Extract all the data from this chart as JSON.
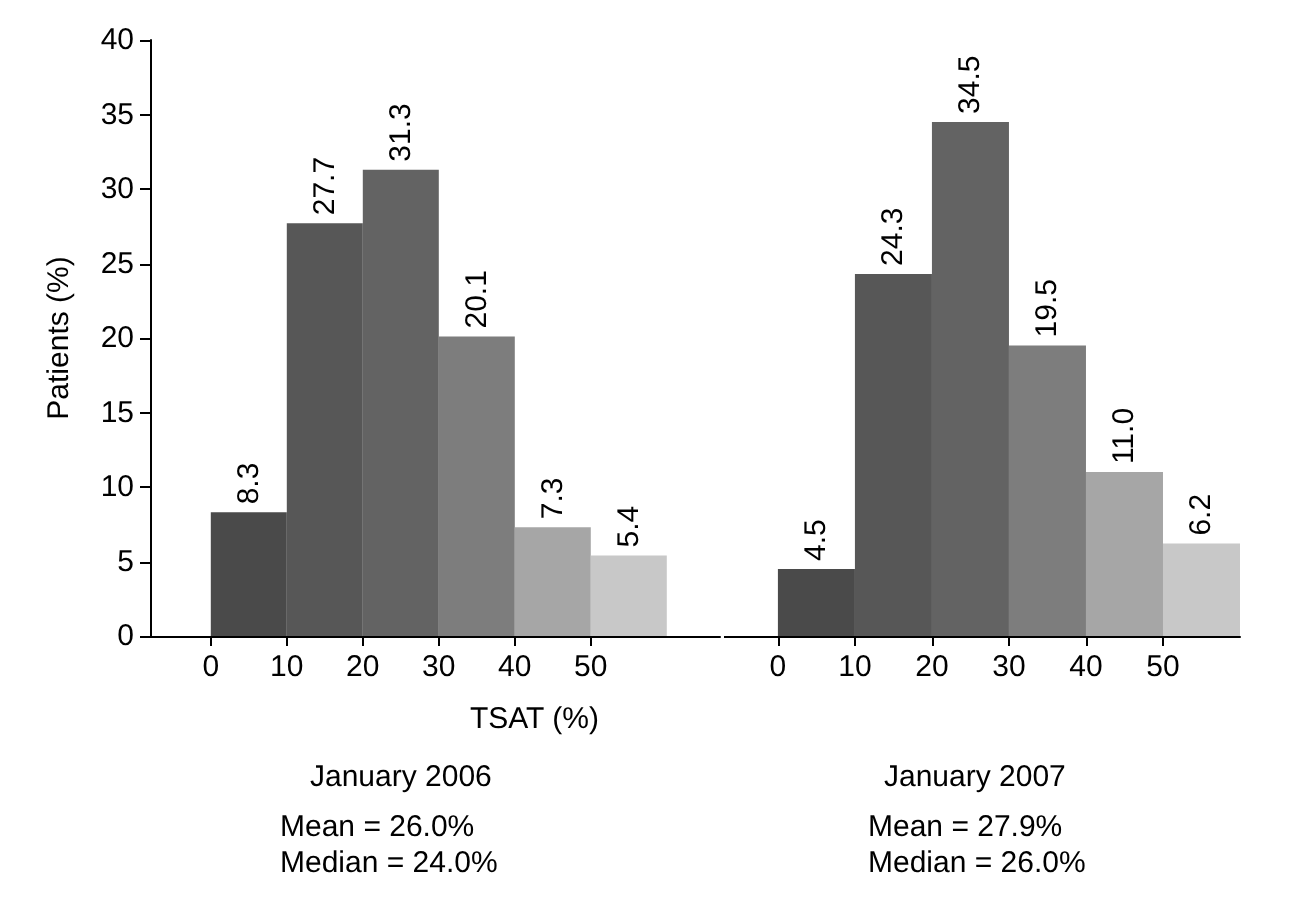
{
  "chart_data": [
    {
      "type": "histogram",
      "title": "January 2006",
      "xlabel": "TSAT (%)",
      "ylabel": "Patients (%)",
      "bins": [
        0,
        10,
        20,
        30,
        40,
        50,
        60
      ],
      "values": [
        8.3,
        27.7,
        31.3,
        20.1,
        7.3,
        5.4
      ],
      "value_labels": [
        "8.3",
        "27.7",
        "31.3",
        "20.1",
        "7.3",
        "5.4"
      ],
      "colors": [
        "#4a4a4a",
        "#575757",
        "#636363",
        "#7d7d7d",
        "#a6a6a6",
        "#c8c8c8"
      ],
      "xlim": [
        -8,
        67
      ],
      "xticks": [
        0,
        10,
        20,
        30,
        40,
        50
      ],
      "ylim": [
        0,
        40
      ],
      "yticks": [
        0,
        5,
        10,
        15,
        20,
        25,
        30,
        35,
        40
      ],
      "annotations": [
        "Mean = 26.0%",
        "Median = 24.0%"
      ]
    },
    {
      "type": "histogram",
      "title": "January 2007",
      "bins": [
        0,
        10,
        20,
        30,
        40,
        50,
        60
      ],
      "values": [
        4.5,
        24.3,
        34.5,
        19.5,
        11.0,
        6.2
      ],
      "value_labels": [
        "4.5",
        "24.3",
        "34.5",
        "19.5",
        "11.0",
        "6.2"
      ],
      "colors": [
        "#4a4a4a",
        "#575757",
        "#636363",
        "#7d7d7d",
        "#a6a6a6",
        "#c8c8c8"
      ],
      "xlim": [
        -7,
        60
      ],
      "xticks": [
        0,
        10,
        20,
        30,
        40,
        50
      ],
      "ylim": [
        0,
        40
      ],
      "yticks": [
        0,
        5,
        10,
        15,
        20,
        25,
        30,
        35,
        40
      ],
      "tick_labels": "x",
      "annotations": [
        "Mean = 27.9%",
        "Median = 26.0%"
      ]
    }
  ]
}
